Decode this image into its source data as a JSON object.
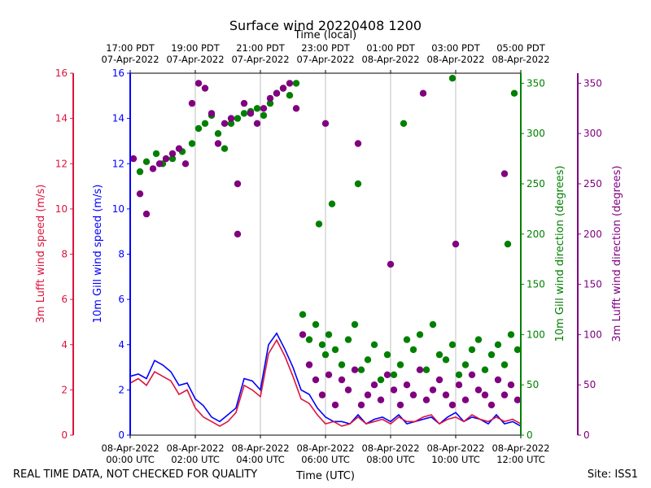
{
  "chart_data": {
    "type": "line",
    "title": "Surface wind 20220408 1200",
    "top_axis": {
      "label": "Time (local)",
      "ticks": [
        [
          "17:00 PDT",
          "07-Apr-2022"
        ],
        [
          "19:00 PDT",
          "07-Apr-2022"
        ],
        [
          "21:00 PDT",
          "07-Apr-2022"
        ],
        [
          "23:00 PDT",
          "07-Apr-2022"
        ],
        [
          "01:00 PDT",
          "08-Apr-2022"
        ],
        [
          "03:00 PDT",
          "08-Apr-2022"
        ],
        [
          "05:00 PDT",
          "08-Apr-2022"
        ]
      ]
    },
    "bottom_axis": {
      "label": "Time (UTC)",
      "ticks": [
        [
          "08-Apr-2022",
          "00:00 UTC"
        ],
        [
          "08-Apr-2022",
          "02:00 UTC"
        ],
        [
          "08-Apr-2022",
          "04:00 UTC"
        ],
        [
          "08-Apr-2022",
          "06:00 UTC"
        ],
        [
          "08-Apr-2022",
          "08:00 UTC"
        ],
        [
          "08-Apr-2022",
          "10:00 UTC"
        ],
        [
          "08-Apr-2022",
          "12:00 UTC"
        ]
      ],
      "xlim_hours": [
        0,
        12
      ]
    },
    "y_axes": {
      "lufft_speed": {
        "label": "3m Lufft wind speed (m/s)",
        "range": [
          0,
          16
        ],
        "ticks": [
          0,
          2,
          4,
          6,
          8,
          10,
          12,
          14,
          16
        ],
        "color": "#dc143c"
      },
      "gill_speed": {
        "label": "10m Gill wind speed (m/s)",
        "range": [
          0,
          16
        ],
        "ticks": [
          0,
          2,
          4,
          6,
          8,
          10,
          12,
          14,
          16
        ],
        "color": "#0000ff"
      },
      "gill_dir": {
        "label": "10m Gill wind direction (degrees)",
        "range": [
          0,
          360
        ],
        "ticks": [
          0,
          50,
          100,
          150,
          200,
          250,
          300,
          350
        ],
        "color": "#008000"
      },
      "lufft_dir": {
        "label": "3m Lufft wind direction (degrees)",
        "range": [
          0,
          360
        ],
        "ticks": [
          0,
          50,
          100,
          150,
          200,
          250,
          300,
          350
        ],
        "color": "#800080"
      }
    },
    "series": [
      {
        "name": "10m Gill wind speed",
        "kind": "line",
        "axis": "gill_speed",
        "color": "#0000ff",
        "x": [
          0.0,
          0.25,
          0.5,
          0.75,
          1.0,
          1.25,
          1.5,
          1.75,
          2.0,
          2.25,
          2.5,
          2.75,
          3.0,
          3.25,
          3.5,
          3.75,
          4.0,
          4.25,
          4.5,
          4.75,
          5.0,
          5.25,
          5.5,
          5.75,
          6.0,
          6.25,
          6.5,
          6.75,
          7.0,
          7.25,
          7.5,
          7.75,
          8.0,
          8.25,
          8.5,
          8.75,
          9.0,
          9.25,
          9.5,
          9.75,
          10.0,
          10.25,
          10.5,
          10.75,
          11.0,
          11.25,
          11.5,
          11.75,
          12.0
        ],
        "y": [
          2.6,
          2.7,
          2.5,
          3.3,
          3.1,
          2.8,
          2.2,
          2.3,
          1.6,
          1.3,
          0.8,
          0.6,
          0.9,
          1.2,
          2.5,
          2.4,
          2.0,
          4.0,
          4.5,
          3.8,
          3.0,
          2.0,
          1.8,
          1.2,
          0.8,
          0.6,
          0.6,
          0.5,
          0.9,
          0.5,
          0.7,
          0.8,
          0.6,
          0.9,
          0.5,
          0.6,
          0.7,
          0.8,
          0.5,
          0.8,
          1.0,
          0.6,
          0.8,
          0.7,
          0.5,
          0.9,
          0.5,
          0.6,
          0.4
        ]
      },
      {
        "name": "3m Lufft wind speed",
        "kind": "line",
        "axis": "lufft_speed",
        "color": "#dc143c",
        "x": [
          0.0,
          0.25,
          0.5,
          0.75,
          1.0,
          1.25,
          1.5,
          1.75,
          2.0,
          2.25,
          2.5,
          2.75,
          3.0,
          3.25,
          3.5,
          3.75,
          4.0,
          4.25,
          4.5,
          4.75,
          5.0,
          5.25,
          5.5,
          5.75,
          6.0,
          6.25,
          6.5,
          6.75,
          7.0,
          7.25,
          7.5,
          7.75,
          8.0,
          8.25,
          8.5,
          8.75,
          9.0,
          9.25,
          9.5,
          9.75,
          10.0,
          10.25,
          10.5,
          10.75,
          11.0,
          11.25,
          11.5,
          11.75,
          12.0
        ],
        "y": [
          2.3,
          2.5,
          2.2,
          2.8,
          2.6,
          2.4,
          1.8,
          2.0,
          1.2,
          0.8,
          0.6,
          0.4,
          0.6,
          1.0,
          2.2,
          2.0,
          1.7,
          3.6,
          4.2,
          3.5,
          2.6,
          1.6,
          1.4,
          0.9,
          0.5,
          0.6,
          0.4,
          0.5,
          0.8,
          0.5,
          0.6,
          0.7,
          0.5,
          0.8,
          0.6,
          0.6,
          0.8,
          0.9,
          0.5,
          0.7,
          0.8,
          0.6,
          0.9,
          0.7,
          0.6,
          0.8,
          0.6,
          0.7,
          0.5
        ]
      },
      {
        "name": "10m Gill wind direction",
        "kind": "scatter",
        "axis": "gill_dir",
        "color": "#008000",
        "x": [
          0.3,
          0.5,
          0.8,
          1.0,
          1.3,
          1.6,
          1.9,
          2.1,
          2.3,
          2.5,
          2.7,
          2.9,
          3.1,
          3.3,
          3.5,
          3.7,
          3.9,
          4.1,
          4.3,
          4.5,
          4.7,
          4.9,
          5.1,
          5.3,
          5.5,
          5.7,
          5.9,
          6.0,
          6.1,
          6.3,
          6.5,
          6.7,
          6.9,
          7.1,
          7.3,
          7.5,
          7.7,
          7.9,
          8.1,
          8.3,
          8.5,
          8.7,
          8.9,
          9.1,
          9.3,
          9.5,
          9.7,
          9.9,
          10.1,
          10.3,
          10.5,
          10.7,
          10.9,
          11.1,
          11.3,
          11.5,
          11.7,
          11.9,
          5.8,
          6.2,
          7.0,
          8.4,
          9.9,
          11.6,
          11.8
        ],
        "y": [
          262,
          272,
          280,
          270,
          275,
          282,
          290,
          305,
          310,
          318,
          300,
          285,
          310,
          315,
          320,
          322,
          325,
          318,
          330,
          340,
          345,
          338,
          350,
          120,
          95,
          110,
          90,
          80,
          100,
          85,
          70,
          95,
          110,
          65,
          75,
          90,
          55,
          80,
          60,
          70,
          95,
          85,
          100,
          65,
          110,
          80,
          75,
          90,
          60,
          70,
          85,
          95,
          65,
          80,
          90,
          70,
          100,
          85,
          210,
          230,
          250,
          310,
          355,
          190,
          340
        ]
      },
      {
        "name": "3m Lufft wind direction",
        "kind": "scatter",
        "axis": "lufft_dir",
        "color": "#800080",
        "x": [
          0.1,
          0.3,
          0.5,
          0.7,
          0.9,
          1.1,
          1.3,
          1.5,
          1.7,
          1.9,
          2.1,
          2.3,
          2.5,
          2.7,
          2.9,
          3.1,
          3.3,
          3.5,
          3.7,
          3.9,
          4.1,
          4.3,
          4.5,
          4.7,
          4.9,
          5.1,
          5.3,
          5.5,
          5.7,
          5.9,
          6.1,
          6.3,
          6.5,
          6.7,
          6.9,
          7.1,
          7.3,
          7.5,
          7.7,
          7.9,
          8.1,
          8.3,
          8.5,
          8.7,
          8.9,
          9.1,
          9.3,
          9.5,
          9.7,
          9.9,
          10.1,
          10.3,
          10.5,
          10.7,
          10.9,
          11.1,
          11.3,
          11.5,
          11.7,
          11.9,
          3.3,
          6.0,
          7.0,
          8.0,
          9.0,
          10.0,
          11.5
        ],
        "y": [
          275,
          240,
          220,
          265,
          270,
          275,
          280,
          285,
          270,
          330,
          350,
          345,
          320,
          290,
          310,
          315,
          250,
          330,
          320,
          310,
          325,
          335,
          340,
          345,
          350,
          325,
          100,
          70,
          55,
          40,
          60,
          30,
          55,
          45,
          65,
          30,
          40,
          50,
          35,
          60,
          45,
          30,
          50,
          40,
          65,
          35,
          45,
          55,
          40,
          30,
          50,
          35,
          60,
          45,
          40,
          30,
          55,
          40,
          50,
          35,
          200,
          310,
          290,
          170,
          340,
          190,
          260
        ]
      }
    ],
    "footer_left": "REAL TIME DATA, NOT CHECKED FOR QUALITY",
    "footer_right": "Site: ISS1"
  }
}
